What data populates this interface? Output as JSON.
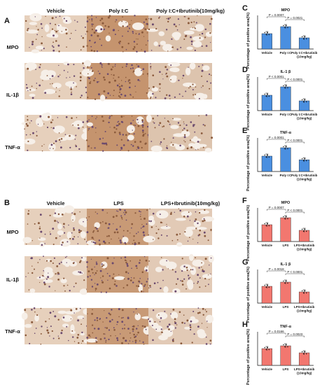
{
  "panels": {
    "A": "A",
    "B": "B",
    "C": "C",
    "D": "D",
    "E": "E",
    "F": "F",
    "G": "G",
    "H": "H"
  },
  "top_block": {
    "columns": [
      "Vehicle",
      "Poly I:C",
      "Poly I:C+Ibrutinib(10mg/kg)"
    ],
    "rows": [
      "MPO",
      "IL-1β",
      "TNF-α"
    ],
    "colors": [
      "#e6d0bc",
      "#c5946e",
      "#ddc4ae"
    ]
  },
  "bottom_block": {
    "columns": [
      "Vehicle",
      "LPS",
      "LPS+Ibrutinib(10mg/kg)"
    ],
    "rows": [
      "MPO",
      "IL-1β",
      "TNF-α"
    ],
    "colors": [
      "#e6d0bc",
      "#c89a76",
      "#e2cab6"
    ]
  },
  "chart_data": [
    {
      "panel": "C",
      "type": "bar",
      "title": "MPO",
      "ylabel": "Percentage of positive area(%)",
      "categories": [
        "Vehicle",
        "Poly I:C",
        "Poly I:C+Ibrutinib\n(10mg/kg)"
      ],
      "values": [
        0.55,
        0.8,
        0.4
      ],
      "ylim": [
        0,
        1.2
      ],
      "bar_color": "#4a8fe0",
      "pvalues": [
        "P = 0.0007",
        "P = 0.0021"
      ]
    },
    {
      "panel": "D",
      "type": "bar",
      "title": "IL-1 β",
      "ylabel": "Percentage of positive area(%)",
      "categories": [
        "Vehicle",
        "Poly I:C",
        "Poly I:C+Ibrutinib\n(10mg/kg)"
      ],
      "values": [
        0.55,
        0.85,
        0.35
      ],
      "ylim": [
        0,
        1.2
      ],
      "bar_color": "#4a8fe0",
      "pvalues": [
        "P < 0.0001",
        "P < 0.0001"
      ]
    },
    {
      "panel": "E",
      "type": "bar",
      "title": "TNF-α",
      "ylabel": "Percentage of positive area(%)",
      "categories": [
        "Vehicle",
        "Poly I:C",
        "Poly I:C+Ibrutinib\n(10mg/kg)"
      ],
      "values": [
        0.55,
        0.85,
        0.42
      ],
      "ylim": [
        0,
        1.2
      ],
      "bar_color": "#4a8fe0",
      "pvalues": [
        "P = 0.0001",
        "P < 0.0001"
      ]
    },
    {
      "panel": "F",
      "type": "bar",
      "title": "MPO",
      "ylabel": "Percentage of positive area(%)",
      "categories": [
        "Vehicle",
        "LPS",
        "LPS+Ibrutinib\n(10mg/kg)"
      ],
      "values": [
        0.6,
        0.85,
        0.4
      ],
      "ylim": [
        0,
        1.2
      ],
      "bar_color": "#f2776f",
      "pvalues": [
        "P = 0.0007",
        "P < 0.0001"
      ]
    },
    {
      "panel": "G",
      "type": "bar",
      "title": "IL-1 β",
      "ylabel": "Percentage of positive area(%)",
      "categories": [
        "Vehicle",
        "LPS",
        "LPS+Ibrutinib\n(10mg/kg)"
      ],
      "values": [
        0.6,
        0.75,
        0.4
      ],
      "ylim": [
        0,
        1.2
      ],
      "bar_color": "#f2776f",
      "pvalues": [
        "P = 0.0018",
        "P < 0.0001"
      ]
    },
    {
      "panel": "H",
      "type": "bar",
      "title": "TNF-α",
      "ylabel": "Percentage of positive area(%)",
      "categories": [
        "Vehicle",
        "LPS",
        "LPS+Ibrutinib\n(10mg/kg)"
      ],
      "values": [
        0.6,
        0.7,
        0.45
      ],
      "ylim": [
        0,
        1.2
      ],
      "bar_color": "#f2776f",
      "pvalues": [
        "P = 0.0166",
        "P = 0.0023"
      ]
    }
  ]
}
